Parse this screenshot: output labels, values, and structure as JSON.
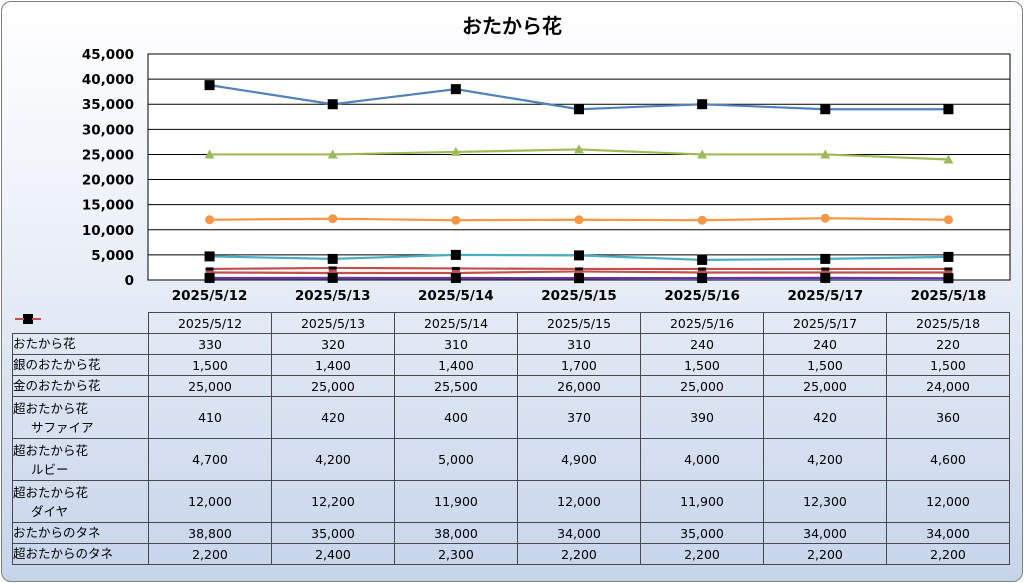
{
  "chart_data": {
    "type": "line",
    "title": "おたから花",
    "categories": [
      "2025/5/12",
      "2025/5/13",
      "2025/5/14",
      "2025/5/15",
      "2025/5/16",
      "2025/5/17",
      "2025/5/18"
    ],
    "ylim": [
      0,
      45000
    ],
    "yticks": [
      "0",
      "5,000",
      "10,000",
      "15,000",
      "20,000",
      "25,000",
      "30,000",
      "35,000",
      "40,000",
      "45,000"
    ],
    "grid": true,
    "legend": "data-table",
    "series": [
      {
        "name": "おたから花",
        "name_lines": [
          "おたから花"
        ],
        "color": "#4f81bd",
        "marker": "diamond",
        "values": [
          330,
          320,
          310,
          310,
          240,
          240,
          220
        ],
        "display": [
          "330",
          "320",
          "310",
          "310",
          "240",
          "240",
          "220"
        ]
      },
      {
        "name": "銀のおたから花",
        "name_lines": [
          "銀のおたから花"
        ],
        "color": "#c0504d",
        "marker": "square",
        "values": [
          1500,
          1400,
          1400,
          1700,
          1500,
          1500,
          1500
        ],
        "display": [
          "1,500",
          "1,400",
          "1,400",
          "1,700",
          "1,500",
          "1,500",
          "1,500"
        ]
      },
      {
        "name": "金のおたから花",
        "name_lines": [
          "金のおたから花"
        ],
        "color": "#9bbb59",
        "marker": "triangle",
        "values": [
          25000,
          25000,
          25500,
          26000,
          25000,
          25000,
          24000
        ],
        "display": [
          "25,000",
          "25,000",
          "25,500",
          "26,000",
          "25,000",
          "25,000",
          "24,000"
        ]
      },
      {
        "name": "超おたから花 サファイア",
        "name_lines": [
          "超おたから花",
          "サファイア"
        ],
        "color": "#7030a0",
        "marker": "square-black",
        "values": [
          410,
          420,
          400,
          370,
          390,
          420,
          360
        ],
        "display": [
          "410",
          "420",
          "400",
          "370",
          "390",
          "420",
          "360"
        ]
      },
      {
        "name": "超おたから花 ルビー",
        "name_lines": [
          "超おたから花",
          "ルビー"
        ],
        "color": "#4bacc6",
        "marker": "square-black",
        "values": [
          4700,
          4200,
          5000,
          4900,
          4000,
          4200,
          4600
        ],
        "display": [
          "4,700",
          "4,200",
          "5,000",
          "4,900",
          "4,000",
          "4,200",
          "4,600"
        ]
      },
      {
        "name": "超おたから花 ダイヤ",
        "name_lines": [
          "超おたから花",
          "ダイヤ"
        ],
        "color": "#f79646",
        "marker": "circle",
        "values": [
          12000,
          12200,
          11900,
          12000,
          11900,
          12300,
          12000
        ],
        "display": [
          "12,000",
          "12,200",
          "11,900",
          "12,000",
          "11,900",
          "12,300",
          "12,000"
        ]
      },
      {
        "name": "おたからのタネ",
        "name_lines": [
          "おたからのタネ"
        ],
        "color": "#4f81bd",
        "marker": "square-black",
        "values": [
          38800,
          35000,
          38000,
          34000,
          35000,
          34000,
          34000
        ],
        "display": [
          "38,800",
          "35,000",
          "38,000",
          "34,000",
          "35,000",
          "34,000",
          "34,000"
        ]
      },
      {
        "name": "超おたからのタネ",
        "name_lines": [
          "超おたからのタネ"
        ],
        "color": "#c0504d",
        "marker": "dash",
        "values": [
          2200,
          2400,
          2300,
          2200,
          2200,
          2200,
          2200
        ],
        "display": [
          "2,200",
          "2,400",
          "2,300",
          "2,200",
          "2,200",
          "2,200",
          "2,200"
        ]
      }
    ]
  }
}
